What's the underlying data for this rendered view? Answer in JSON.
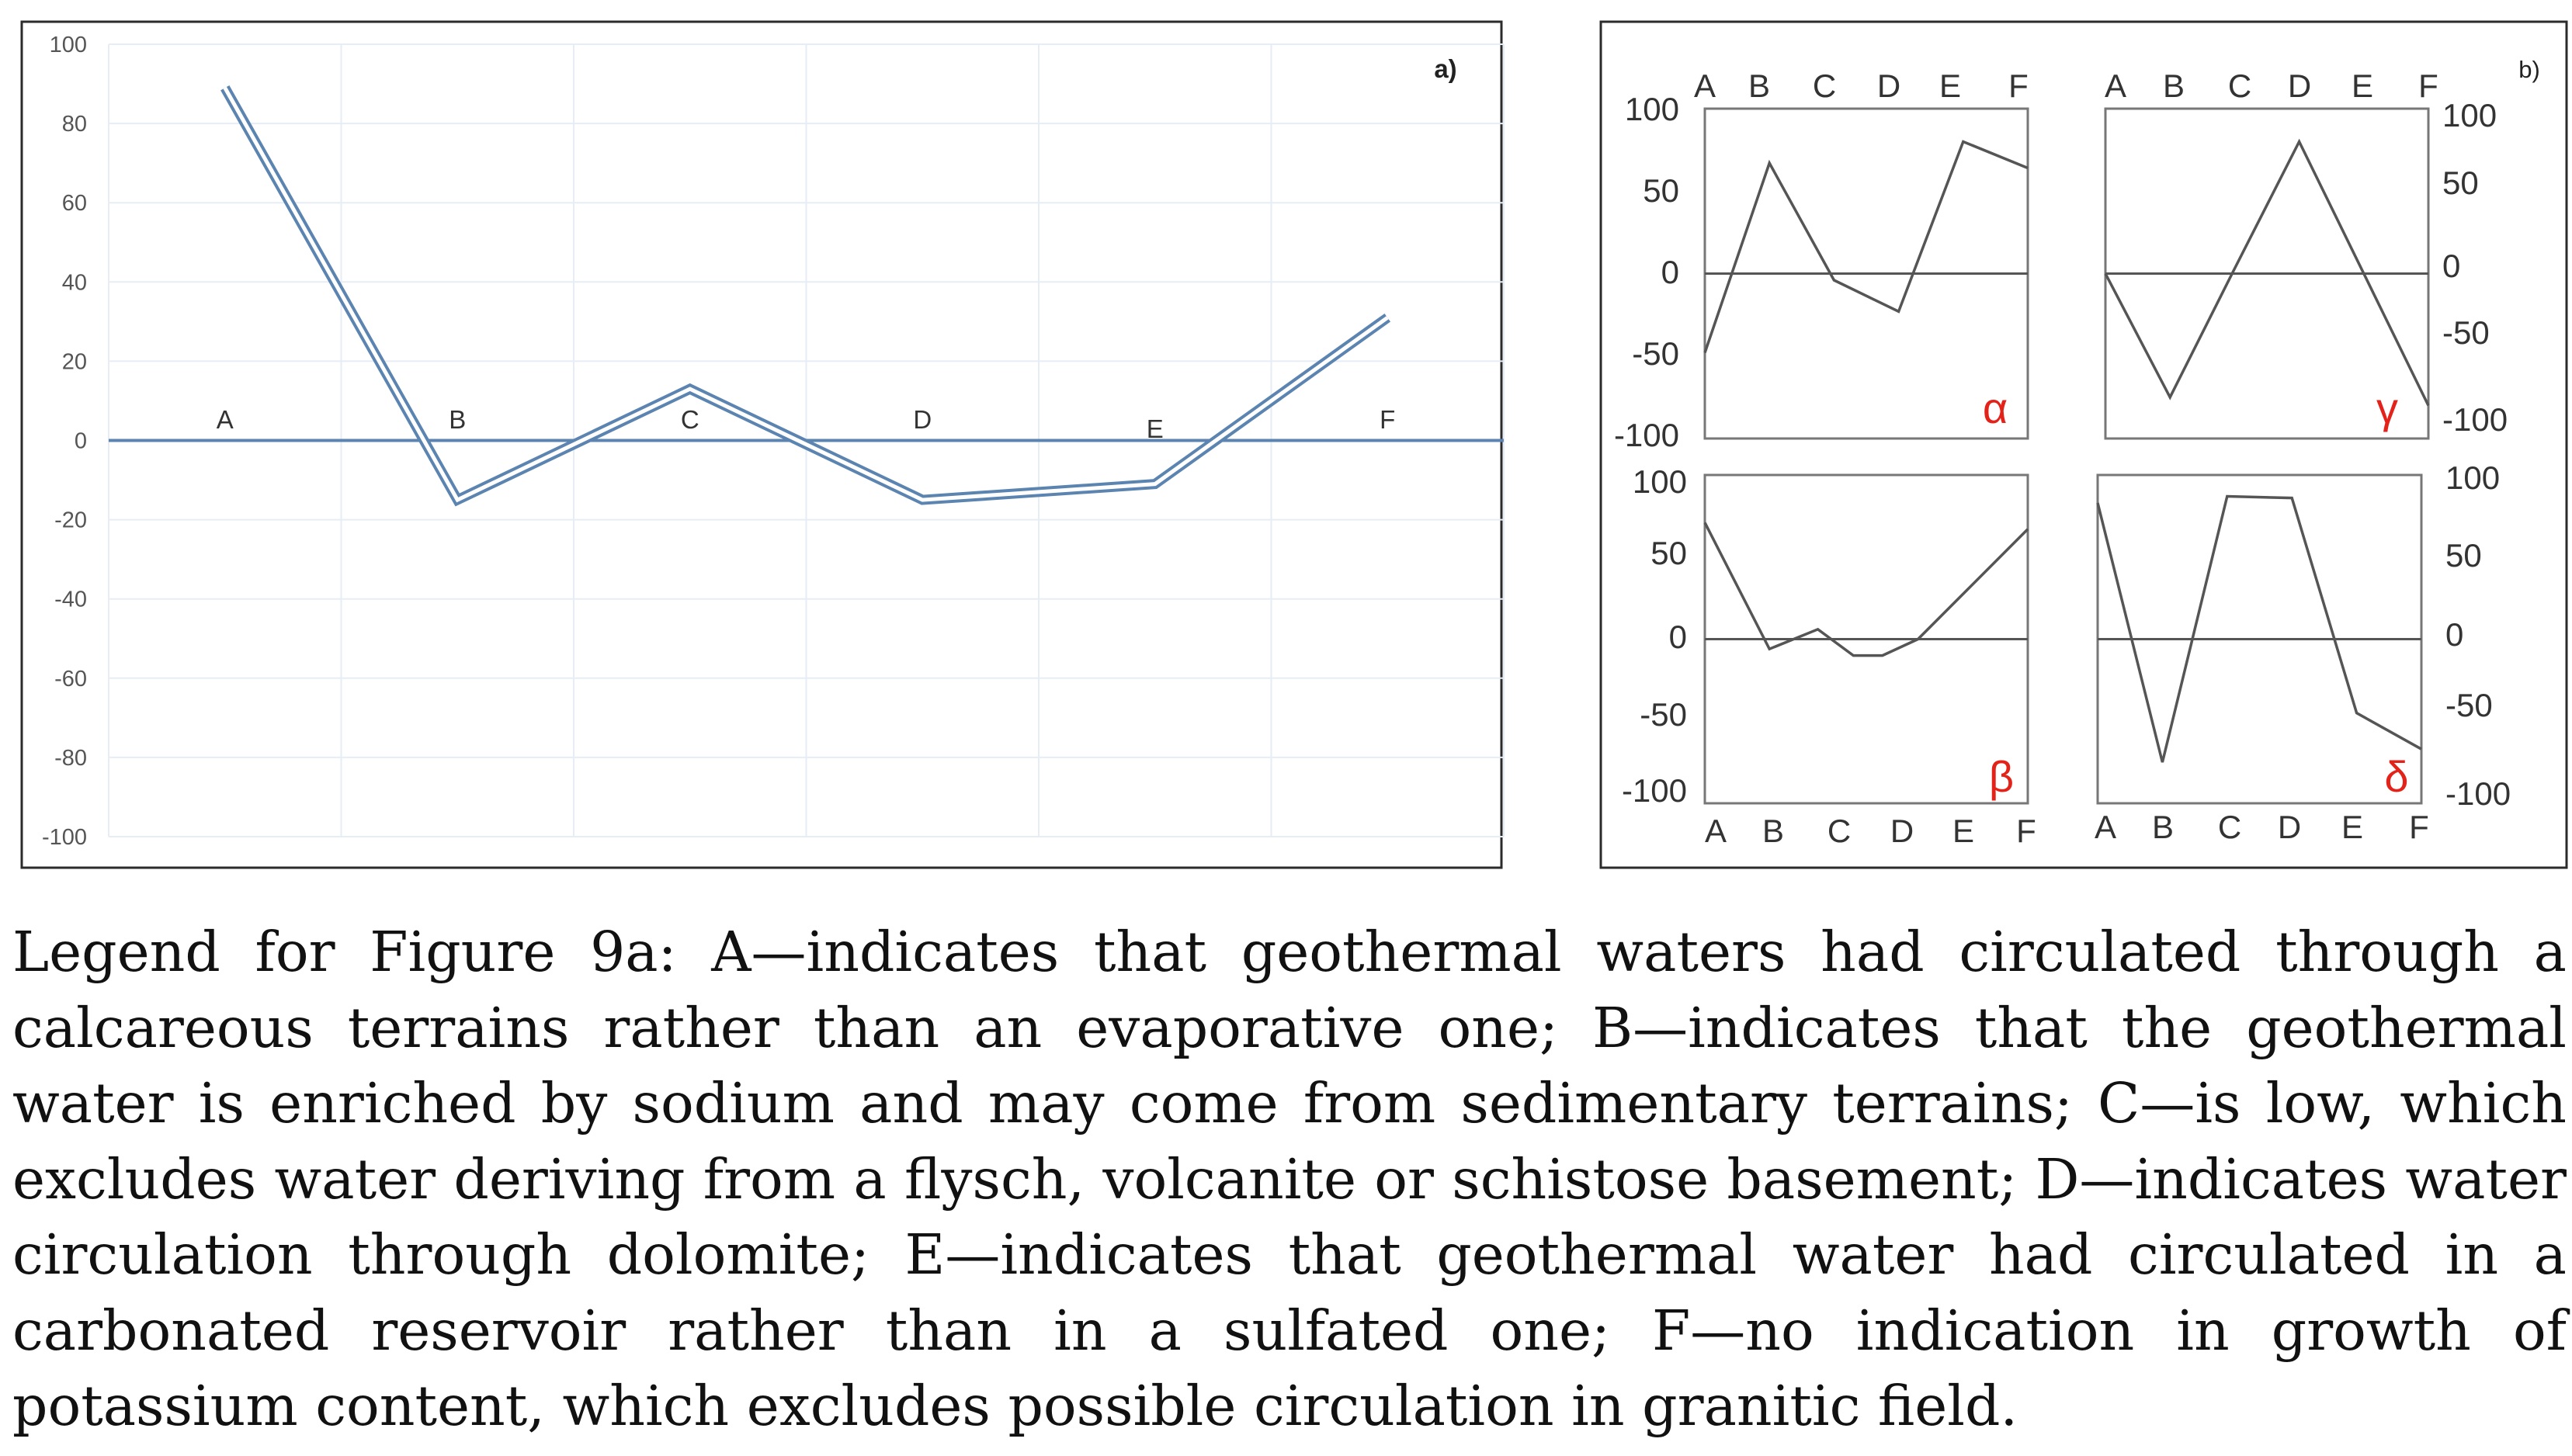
{
  "chart_data": [
    {
      "id": "panel-a",
      "type": "line",
      "panel_label": "a)",
      "categories": [
        "A",
        "B",
        "C",
        "D",
        "E",
        "F"
      ],
      "values": [
        89,
        -15,
        13,
        -15,
        -11,
        31
      ],
      "ylim": [
        -100,
        100
      ],
      "yticks": [
        100,
        80,
        60,
        40,
        20,
        0,
        -20,
        -40,
        -60,
        -80,
        -100
      ],
      "grid": true,
      "colors": {
        "line": "#5b84b1",
        "axis": "#5b84b1",
        "grid": "#e6edf5"
      }
    },
    {
      "id": "panel-b",
      "panel_label": "b)",
      "subplots": [
        {
          "id": "alpha",
          "type": "line",
          "label": "α",
          "categories": [
            "A",
            "B",
            "C",
            "D",
            "E",
            "F"
          ],
          "values": [
            -48,
            67,
            -4,
            -23,
            80,
            64
          ],
          "ylim": [
            -100,
            100
          ],
          "yticks": [
            "100",
            "50",
            "0",
            "-50",
            "-100"
          ],
          "yaxis": "left",
          "xaxis": "top"
        },
        {
          "id": "gamma",
          "type": "line",
          "label": "γ",
          "categories": [
            "A",
            "B",
            "C",
            "D",
            "E",
            "F"
          ],
          "values": [
            0,
            -75,
            3,
            80,
            0,
            -80
          ],
          "ylim": [
            -100,
            100
          ],
          "yticks": [
            "100",
            "50",
            "0",
            "-50",
            "-100"
          ],
          "yaxis": "right",
          "xaxis": "top"
        },
        {
          "id": "beta",
          "type": "line",
          "label": "β",
          "categories": [
            "A",
            "B",
            "C",
            "D",
            "E",
            "F"
          ],
          "values": [
            71,
            -6,
            6,
            -10,
            -10,
            0,
            67
          ],
          "x": [
            0,
            1,
            1.75,
            2.3,
            2.75,
            3.3,
            5
          ],
          "ylim": [
            -100,
            100
          ],
          "yticks": [
            "100",
            "50",
            "0",
            "-50",
            "-100"
          ],
          "yaxis": "left",
          "xaxis": "bottom"
        },
        {
          "id": "delta",
          "type": "line",
          "label": "δ",
          "categories": [
            "A",
            "B",
            "C",
            "D",
            "E",
            "F"
          ],
          "values": [
            83,
            -75,
            87,
            86,
            -45,
            -67
          ],
          "ylim": [
            -100,
            100
          ],
          "yticks": [
            "100",
            "50",
            "0",
            "-50",
            "-100"
          ],
          "yaxis": "right",
          "xaxis": "bottom"
        }
      ],
      "colors": {
        "line": "#555555",
        "frame": "#777777",
        "label": "#e32219"
      }
    }
  ],
  "caption": "Legend for Figure 9a: A—indicates that geothermal waters had circulated through a calcareous terrains rather than an evaporative one; B—indicates that the geothermal water is enriched by sodium and may come from sedimentary terrains; C—is low, which excludes water deriving from a flysch, volcanite or schistose basement; D—indicates water circulation through dolomite; E—indicates that geothermal water had circulated in a carbonated reservoir rather than in a sulfated one; F—no indication in growth of potassium content, which excludes possible circulation in granitic field."
}
